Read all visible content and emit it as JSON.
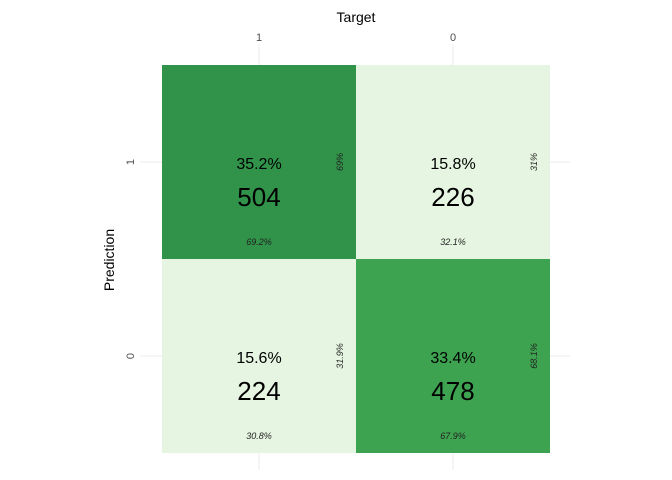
{
  "chart_data": {
    "type": "heatmap",
    "subtype": "confusion-matrix",
    "x_title": "Target",
    "y_title": "Prediction",
    "x_labels": [
      "1",
      "0"
    ],
    "y_labels": [
      "1",
      "0"
    ],
    "grid": true,
    "cells": [
      {
        "prediction": "1",
        "target": "1",
        "count": "504",
        "total_pct": "35.2%",
        "row_pct": "69%",
        "col_pct": "69.2%",
        "color": "#31934a"
      },
      {
        "prediction": "1",
        "target": "0",
        "count": "226",
        "total_pct": "15.8%",
        "row_pct": "31%",
        "col_pct": "32.1%",
        "color": "#e6f5e1"
      },
      {
        "prediction": "0",
        "target": "1",
        "count": "224",
        "total_pct": "15.6%",
        "row_pct": "31.9%",
        "col_pct": "30.8%",
        "color": "#e6f5e1"
      },
      {
        "prediction": "0",
        "target": "0",
        "count": "478",
        "total_pct": "33.4%",
        "row_pct": "68.1%",
        "col_pct": "67.9%",
        "color": "#3da350"
      }
    ]
  }
}
